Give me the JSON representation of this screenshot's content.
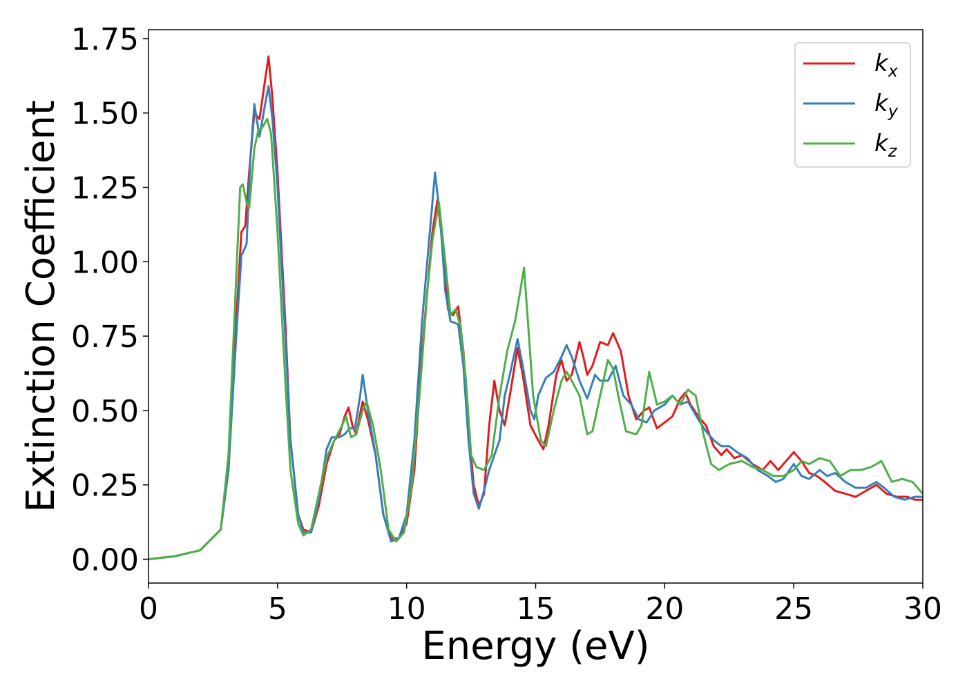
{
  "chart_data": {
    "type": "line",
    "title": "",
    "xlabel": "Energy (eV)",
    "ylabel": "Extinction Coefficient",
    "xlim": [
      0,
      30
    ],
    "ylim": [
      -0.08,
      1.78
    ],
    "grid": false,
    "legend_position": "top-right",
    "x_ticks": [
      0,
      5,
      10,
      15,
      20,
      25,
      30
    ],
    "x_tick_labels": [
      "0",
      "5",
      "10",
      "15",
      "20",
      "25",
      "30"
    ],
    "y_ticks": [
      0,
      0.25,
      0.5,
      0.75,
      1.0,
      1.25,
      1.5,
      1.75
    ],
    "y_tick_labels": [
      "0.00",
      "0.25",
      "0.50",
      "0.75",
      "1.00",
      "1.25",
      "1.50",
      "1.75"
    ],
    "series": [
      {
        "name": "k_x",
        "label_main": "k",
        "label_sub": "x",
        "color": "#e41a1c",
        "points": [
          [
            0,
            0
          ],
          [
            1,
            0.01
          ],
          [
            2,
            0.03
          ],
          [
            2.8,
            0.1
          ],
          [
            3.1,
            0.3
          ],
          [
            3.4,
            0.8
          ],
          [
            3.6,
            1.1
          ],
          [
            3.75,
            1.12
          ],
          [
            3.9,
            1.3
          ],
          [
            4.1,
            1.5
          ],
          [
            4.3,
            1.48
          ],
          [
            4.5,
            1.6
          ],
          [
            4.65,
            1.69
          ],
          [
            4.8,
            1.55
          ],
          [
            5.0,
            1.3
          ],
          [
            5.3,
            0.8
          ],
          [
            5.5,
            0.4
          ],
          [
            5.8,
            0.15
          ],
          [
            6.0,
            0.1
          ],
          [
            6.3,
            0.09
          ],
          [
            6.6,
            0.18
          ],
          [
            6.9,
            0.32
          ],
          [
            7.2,
            0.4
          ],
          [
            7.4,
            0.42
          ],
          [
            7.6,
            0.48
          ],
          [
            7.75,
            0.51
          ],
          [
            7.9,
            0.45
          ],
          [
            8.05,
            0.42
          ],
          [
            8.2,
            0.49
          ],
          [
            8.3,
            0.53
          ],
          [
            8.5,
            0.47
          ],
          [
            8.8,
            0.35
          ],
          [
            9.1,
            0.15
          ],
          [
            9.4,
            0.07
          ],
          [
            9.7,
            0.07
          ],
          [
            10.0,
            0.12
          ],
          [
            10.3,
            0.3
          ],
          [
            10.6,
            0.7
          ],
          [
            10.9,
            1.0
          ],
          [
            11.0,
            1.1
          ],
          [
            11.2,
            1.21
          ],
          [
            11.4,
            1.05
          ],
          [
            11.6,
            0.84
          ],
          [
            11.8,
            0.82
          ],
          [
            12.0,
            0.85
          ],
          [
            12.2,
            0.7
          ],
          [
            12.4,
            0.45
          ],
          [
            12.6,
            0.25
          ],
          [
            12.8,
            0.18
          ],
          [
            13.0,
            0.22
          ],
          [
            13.2,
            0.45
          ],
          [
            13.4,
            0.6
          ],
          [
            13.6,
            0.5
          ],
          [
            13.8,
            0.45
          ],
          [
            14.0,
            0.55
          ],
          [
            14.3,
            0.71
          ],
          [
            14.5,
            0.62
          ],
          [
            14.8,
            0.45
          ],
          [
            15.1,
            0.4
          ],
          [
            15.3,
            0.37
          ],
          [
            15.5,
            0.45
          ],
          [
            15.8,
            0.62
          ],
          [
            16.0,
            0.67
          ],
          [
            16.2,
            0.6
          ],
          [
            16.4,
            0.62
          ],
          [
            16.7,
            0.73
          ],
          [
            16.85,
            0.68
          ],
          [
            17.0,
            0.62
          ],
          [
            17.2,
            0.65
          ],
          [
            17.5,
            0.73
          ],
          [
            17.8,
            0.72
          ],
          [
            18.0,
            0.76
          ],
          [
            18.3,
            0.7
          ],
          [
            18.6,
            0.55
          ],
          [
            18.9,
            0.47
          ],
          [
            19.2,
            0.5
          ],
          [
            19.4,
            0.51
          ],
          [
            19.7,
            0.44
          ],
          [
            20.0,
            0.46
          ],
          [
            20.3,
            0.48
          ],
          [
            20.6,
            0.54
          ],
          [
            20.8,
            0.56
          ],
          [
            21.0,
            0.52
          ],
          [
            21.3,
            0.48
          ],
          [
            21.6,
            0.45
          ],
          [
            21.9,
            0.38
          ],
          [
            22.2,
            0.35
          ],
          [
            22.4,
            0.37
          ],
          [
            22.7,
            0.34
          ],
          [
            23.0,
            0.35
          ],
          [
            23.4,
            0.32
          ],
          [
            23.8,
            0.3
          ],
          [
            24.1,
            0.33
          ],
          [
            24.4,
            0.3
          ],
          [
            24.7,
            0.33
          ],
          [
            25.0,
            0.36
          ],
          [
            25.3,
            0.33
          ],
          [
            25.6,
            0.29
          ],
          [
            25.9,
            0.28
          ],
          [
            26.2,
            0.26
          ],
          [
            26.6,
            0.23
          ],
          [
            27.0,
            0.22
          ],
          [
            27.4,
            0.21
          ],
          [
            27.8,
            0.23
          ],
          [
            28.2,
            0.25
          ],
          [
            28.6,
            0.22
          ],
          [
            29.0,
            0.21
          ],
          [
            29.4,
            0.21
          ],
          [
            29.7,
            0.2
          ],
          [
            30,
            0.2
          ]
        ]
      },
      {
        "name": "k_y",
        "label_main": "k",
        "label_sub": "y",
        "color": "#377eb8",
        "points": [
          [
            0,
            0
          ],
          [
            1,
            0.01
          ],
          [
            2,
            0.03
          ],
          [
            2.8,
            0.1
          ],
          [
            3.1,
            0.3
          ],
          [
            3.4,
            0.75
          ],
          [
            3.6,
            1.02
          ],
          [
            3.8,
            1.06
          ],
          [
            3.95,
            1.35
          ],
          [
            4.1,
            1.53
          ],
          [
            4.3,
            1.42
          ],
          [
            4.5,
            1.52
          ],
          [
            4.65,
            1.59
          ],
          [
            4.8,
            1.48
          ],
          [
            5.0,
            1.25
          ],
          [
            5.3,
            0.75
          ],
          [
            5.5,
            0.4
          ],
          [
            5.8,
            0.15
          ],
          [
            6.0,
            0.09
          ],
          [
            6.3,
            0.09
          ],
          [
            6.6,
            0.2
          ],
          [
            6.9,
            0.37
          ],
          [
            7.1,
            0.41
          ],
          [
            7.4,
            0.41
          ],
          [
            7.6,
            0.42
          ],
          [
            7.8,
            0.44
          ],
          [
            8.0,
            0.44
          ],
          [
            8.2,
            0.55
          ],
          [
            8.3,
            0.62
          ],
          [
            8.5,
            0.5
          ],
          [
            8.8,
            0.35
          ],
          [
            9.1,
            0.15
          ],
          [
            9.4,
            0.06
          ],
          [
            9.7,
            0.07
          ],
          [
            10.0,
            0.15
          ],
          [
            10.3,
            0.4
          ],
          [
            10.6,
            0.8
          ],
          [
            10.9,
            1.1
          ],
          [
            11.1,
            1.3
          ],
          [
            11.3,
            1.15
          ],
          [
            11.5,
            0.9
          ],
          [
            11.7,
            0.8
          ],
          [
            12.0,
            0.79
          ],
          [
            12.2,
            0.65
          ],
          [
            12.4,
            0.4
          ],
          [
            12.6,
            0.22
          ],
          [
            12.8,
            0.17
          ],
          [
            13.0,
            0.23
          ],
          [
            13.2,
            0.3
          ],
          [
            13.4,
            0.35
          ],
          [
            13.6,
            0.4
          ],
          [
            13.8,
            0.55
          ],
          [
            14.0,
            0.62
          ],
          [
            14.3,
            0.74
          ],
          [
            14.5,
            0.65
          ],
          [
            14.8,
            0.5
          ],
          [
            14.95,
            0.47
          ],
          [
            15.1,
            0.55
          ],
          [
            15.4,
            0.61
          ],
          [
            15.7,
            0.63
          ],
          [
            16.0,
            0.68
          ],
          [
            16.2,
            0.72
          ],
          [
            16.4,
            0.68
          ],
          [
            16.7,
            0.6
          ],
          [
            17.0,
            0.54
          ],
          [
            17.3,
            0.62
          ],
          [
            17.5,
            0.6
          ],
          [
            17.8,
            0.6
          ],
          [
            18.1,
            0.65
          ],
          [
            18.4,
            0.55
          ],
          [
            18.7,
            0.52
          ],
          [
            19.0,
            0.47
          ],
          [
            19.3,
            0.46
          ],
          [
            19.6,
            0.5
          ],
          [
            20.0,
            0.52
          ],
          [
            20.3,
            0.55
          ],
          [
            20.6,
            0.52
          ],
          [
            20.9,
            0.53
          ],
          [
            21.3,
            0.47
          ],
          [
            21.6,
            0.43
          ],
          [
            21.9,
            0.4
          ],
          [
            22.2,
            0.38
          ],
          [
            22.5,
            0.38
          ],
          [
            22.8,
            0.36
          ],
          [
            23.2,
            0.34
          ],
          [
            23.6,
            0.3
          ],
          [
            24.0,
            0.28
          ],
          [
            24.3,
            0.26
          ],
          [
            24.6,
            0.27
          ],
          [
            25.0,
            0.32
          ],
          [
            25.3,
            0.28
          ],
          [
            25.6,
            0.27
          ],
          [
            26.0,
            0.3
          ],
          [
            26.3,
            0.28
          ],
          [
            26.6,
            0.29
          ],
          [
            27.0,
            0.26
          ],
          [
            27.4,
            0.24
          ],
          [
            27.8,
            0.24
          ],
          [
            28.2,
            0.26
          ],
          [
            28.5,
            0.24
          ],
          [
            28.9,
            0.21
          ],
          [
            29.3,
            0.2
          ],
          [
            29.7,
            0.21
          ],
          [
            30,
            0.21
          ]
        ]
      },
      {
        "name": "k_z",
        "label_main": "k",
        "label_sub": "z",
        "color": "#4daf4a",
        "points": [
          [
            0,
            0
          ],
          [
            1,
            0.01
          ],
          [
            2,
            0.03
          ],
          [
            2.8,
            0.1
          ],
          [
            3.1,
            0.35
          ],
          [
            3.4,
            0.95
          ],
          [
            3.55,
            1.25
          ],
          [
            3.65,
            1.26
          ],
          [
            3.8,
            1.2
          ],
          [
            3.9,
            1.18
          ],
          [
            4.1,
            1.38
          ],
          [
            4.25,
            1.44
          ],
          [
            4.4,
            1.45
          ],
          [
            4.6,
            1.48
          ],
          [
            4.75,
            1.43
          ],
          [
            5.0,
            1.1
          ],
          [
            5.3,
            0.6
          ],
          [
            5.5,
            0.3
          ],
          [
            5.8,
            0.12
          ],
          [
            6.0,
            0.08
          ],
          [
            6.3,
            0.1
          ],
          [
            6.6,
            0.22
          ],
          [
            6.9,
            0.34
          ],
          [
            7.2,
            0.4
          ],
          [
            7.5,
            0.45
          ],
          [
            7.65,
            0.48
          ],
          [
            7.85,
            0.41
          ],
          [
            8.05,
            0.42
          ],
          [
            8.3,
            0.5
          ],
          [
            8.45,
            0.53
          ],
          [
            8.7,
            0.45
          ],
          [
            9.0,
            0.3
          ],
          [
            9.3,
            0.1
          ],
          [
            9.6,
            0.06
          ],
          [
            9.9,
            0.09
          ],
          [
            10.2,
            0.25
          ],
          [
            10.5,
            0.55
          ],
          [
            10.8,
            0.9
          ],
          [
            11.0,
            1.07
          ],
          [
            11.25,
            1.2
          ],
          [
            11.5,
            1.0
          ],
          [
            11.7,
            0.82
          ],
          [
            11.9,
            0.84
          ],
          [
            12.1,
            0.78
          ],
          [
            12.3,
            0.6
          ],
          [
            12.5,
            0.35
          ],
          [
            12.7,
            0.31
          ],
          [
            13.0,
            0.3
          ],
          [
            13.3,
            0.35
          ],
          [
            13.6,
            0.55
          ],
          [
            13.9,
            0.7
          ],
          [
            14.2,
            0.8
          ],
          [
            14.4,
            0.9
          ],
          [
            14.55,
            0.98
          ],
          [
            14.7,
            0.8
          ],
          [
            14.9,
            0.55
          ],
          [
            15.2,
            0.4
          ],
          [
            15.4,
            0.38
          ],
          [
            15.7,
            0.5
          ],
          [
            16.0,
            0.6
          ],
          [
            16.2,
            0.63
          ],
          [
            16.4,
            0.6
          ],
          [
            16.7,
            0.55
          ],
          [
            17.0,
            0.42
          ],
          [
            17.2,
            0.43
          ],
          [
            17.5,
            0.55
          ],
          [
            17.8,
            0.67
          ],
          [
            18.0,
            0.64
          ],
          [
            18.2,
            0.55
          ],
          [
            18.5,
            0.43
          ],
          [
            18.9,
            0.42
          ],
          [
            19.1,
            0.45
          ],
          [
            19.4,
            0.63
          ],
          [
            19.7,
            0.52
          ],
          [
            20.0,
            0.53
          ],
          [
            20.3,
            0.55
          ],
          [
            20.6,
            0.52
          ],
          [
            20.9,
            0.57
          ],
          [
            21.2,
            0.55
          ],
          [
            21.5,
            0.42
          ],
          [
            21.8,
            0.32
          ],
          [
            22.1,
            0.3
          ],
          [
            22.5,
            0.32
          ],
          [
            23.0,
            0.33
          ],
          [
            23.4,
            0.31
          ],
          [
            23.8,
            0.3
          ],
          [
            24.2,
            0.28
          ],
          [
            24.6,
            0.28
          ],
          [
            25.0,
            0.3
          ],
          [
            25.3,
            0.33
          ],
          [
            25.6,
            0.32
          ],
          [
            26.0,
            0.34
          ],
          [
            26.4,
            0.33
          ],
          [
            26.8,
            0.28
          ],
          [
            27.2,
            0.3
          ],
          [
            27.6,
            0.3
          ],
          [
            28.0,
            0.31
          ],
          [
            28.4,
            0.33
          ],
          [
            28.8,
            0.26
          ],
          [
            29.2,
            0.27
          ],
          [
            29.6,
            0.26
          ],
          [
            30,
            0.22
          ]
        ]
      }
    ]
  }
}
